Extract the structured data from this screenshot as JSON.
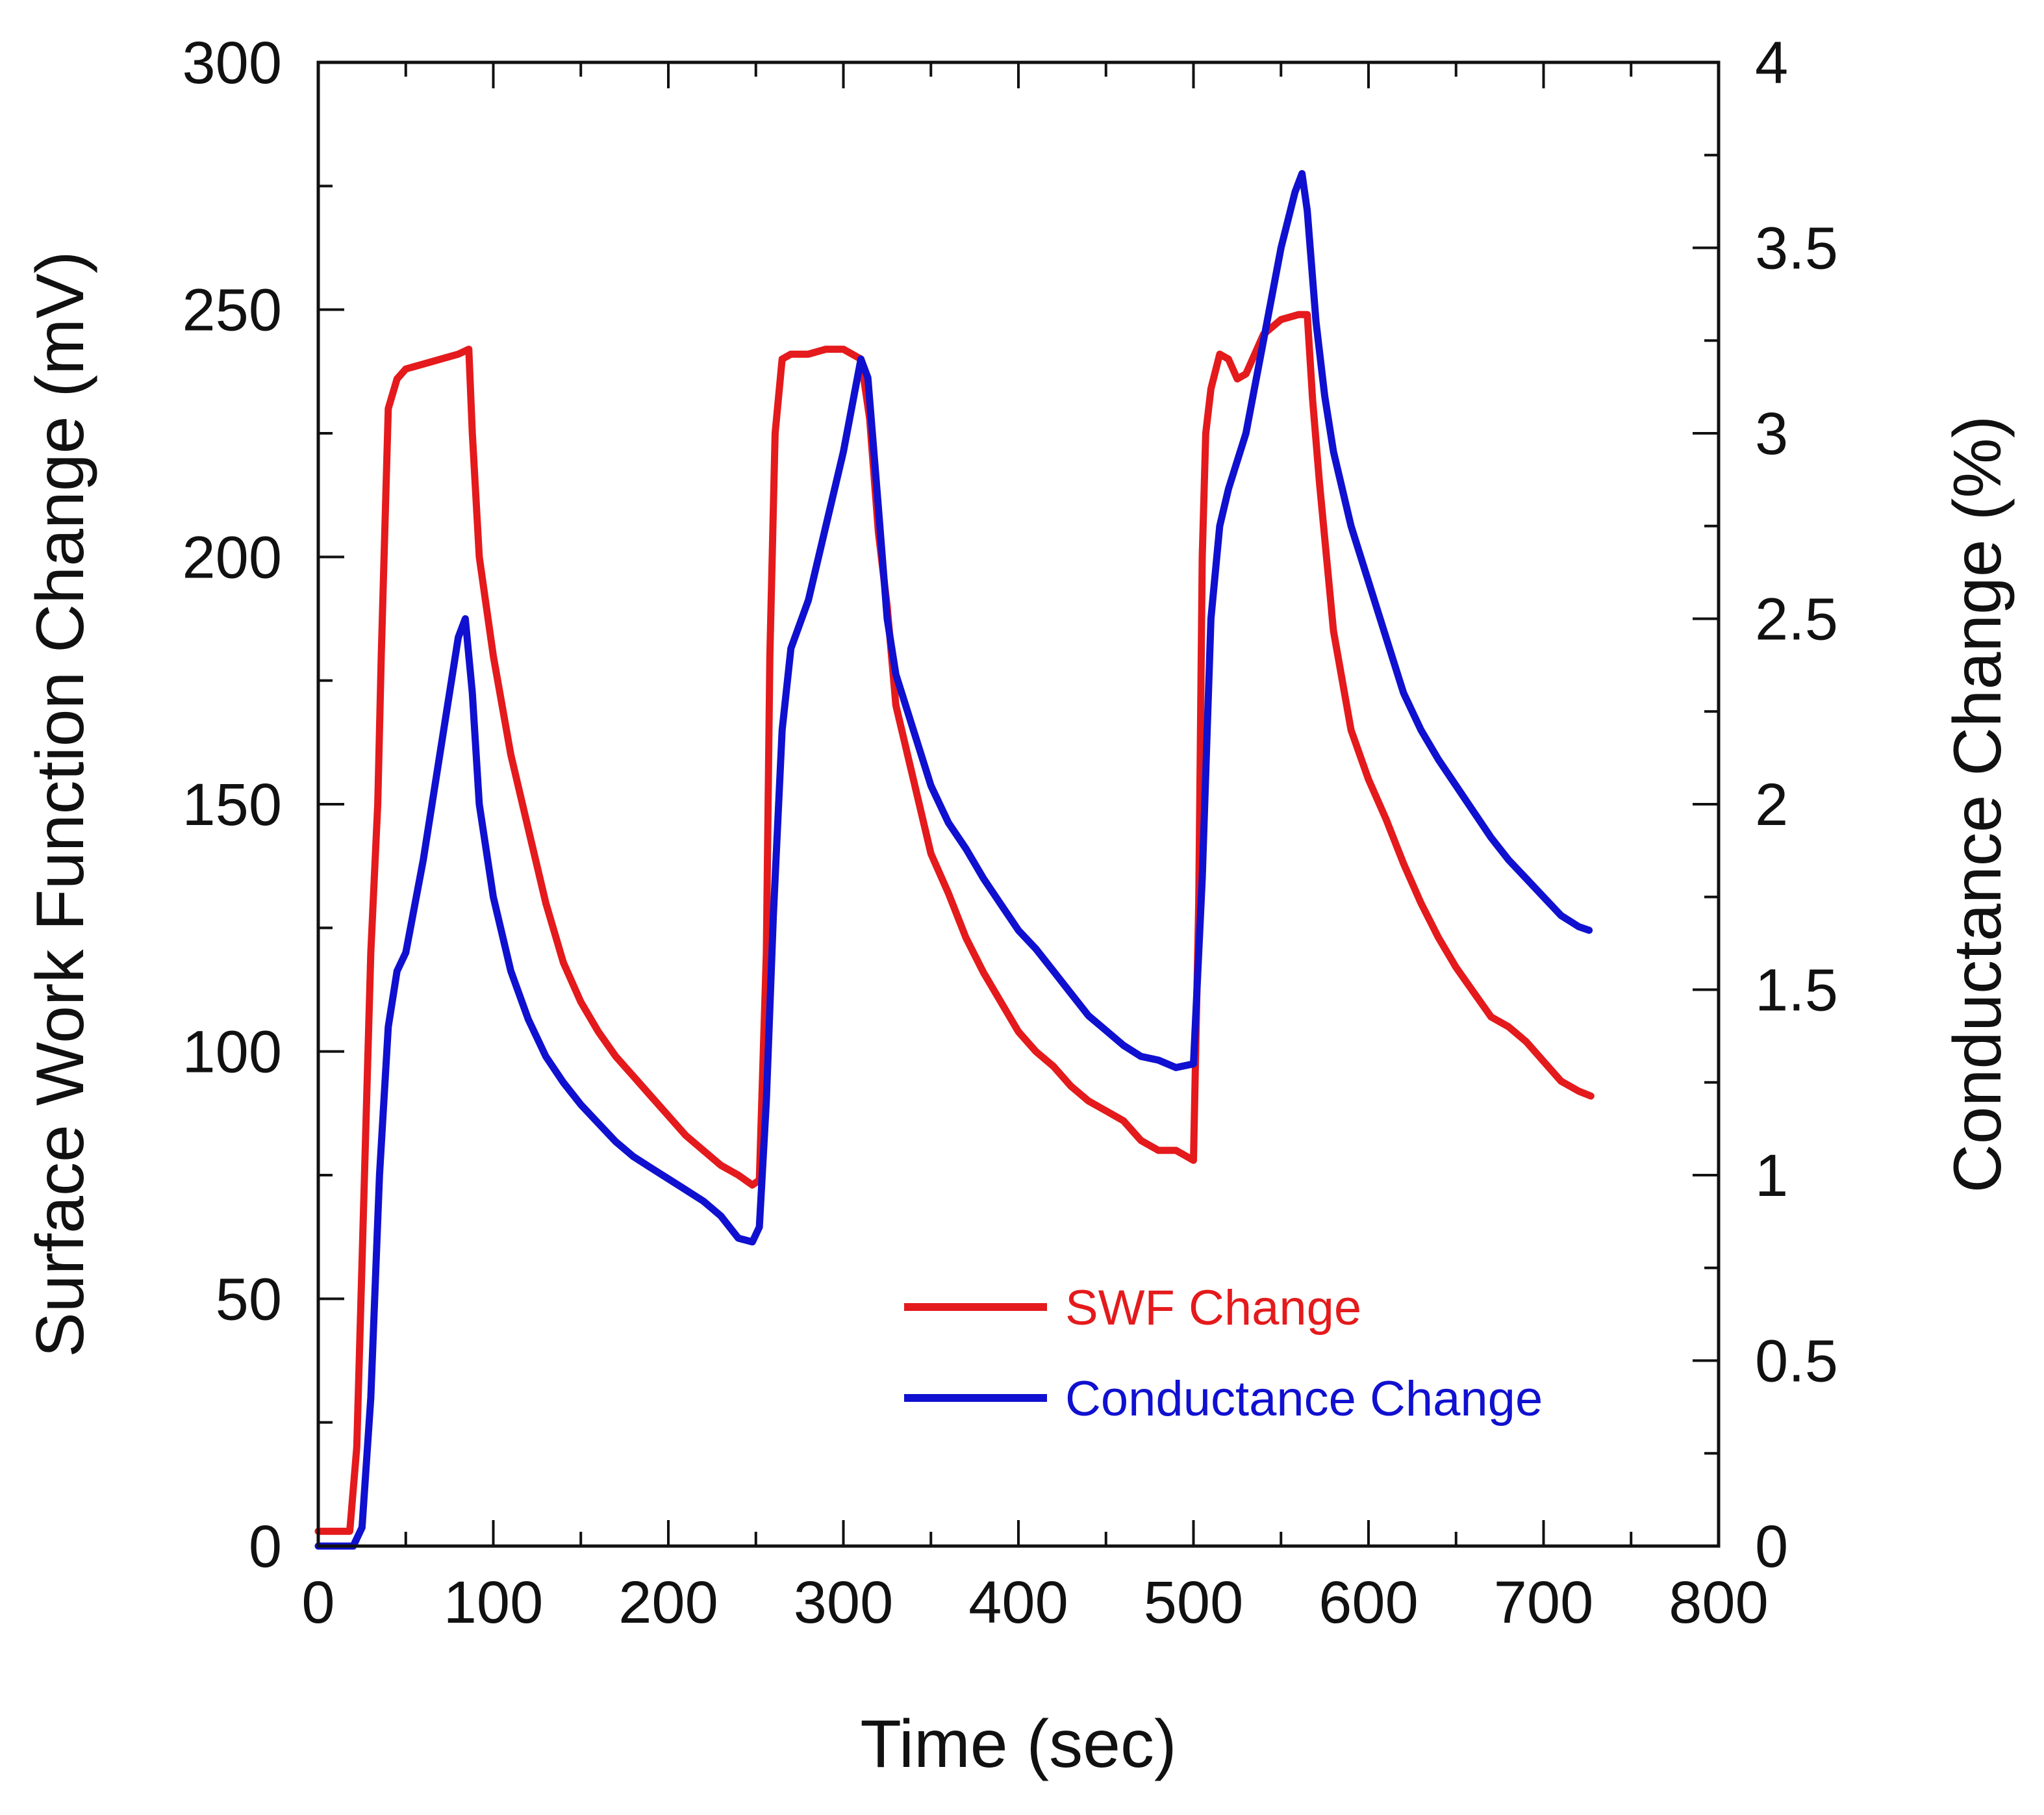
{
  "chart_data": {
    "type": "line",
    "title": "",
    "xlabel": "Time (sec)",
    "ylabel_left": "Surface Work Function Change (mV)",
    "ylabel_right": "Conductance Change (%)",
    "xlim": [
      0,
      800
    ],
    "ylim_left": [
      0,
      300
    ],
    "ylim_right": [
      0,
      4
    ],
    "x_ticks": [
      "0",
      "100",
      "200",
      "300",
      "400",
      "500",
      "600",
      "700",
      "800"
    ],
    "y_left_ticks": [
      "0",
      "50",
      "100",
      "150",
      "200",
      "250",
      "300"
    ],
    "y_right_ticks": [
      "0",
      "0.5",
      "1",
      "1.5",
      "2",
      "2.5",
      "3",
      "3.5",
      "4"
    ],
    "grid": false,
    "legend_position": "lower-right",
    "series": [
      {
        "name": "SWF Change",
        "axis": "left",
        "color": "#e41a1c",
        "points": [
          [
            0,
            3
          ],
          [
            10,
            3
          ],
          [
            18,
            3
          ],
          [
            22,
            20
          ],
          [
            26,
            70
          ],
          [
            30,
            120
          ],
          [
            34,
            150
          ],
          [
            36,
            180
          ],
          [
            40,
            230
          ],
          [
            45,
            236
          ],
          [
            50,
            238
          ],
          [
            60,
            239
          ],
          [
            70,
            240
          ],
          [
            80,
            241
          ],
          [
            86,
            242
          ],
          [
            88,
            225
          ],
          [
            92,
            200
          ],
          [
            100,
            180
          ],
          [
            110,
            160
          ],
          [
            120,
            145
          ],
          [
            130,
            130
          ],
          [
            140,
            118
          ],
          [
            150,
            110
          ],
          [
            160,
            104
          ],
          [
            170,
            99
          ],
          [
            180,
            95
          ],
          [
            190,
            91
          ],
          [
            200,
            87
          ],
          [
            210,
            83
          ],
          [
            220,
            80
          ],
          [
            230,
            77
          ],
          [
            240,
            75
          ],
          [
            248,
            73
          ],
          [
            252,
            74
          ],
          [
            256,
            120
          ],
          [
            258,
            180
          ],
          [
            261,
            225
          ],
          [
            265,
            240
          ],
          [
            270,
            241
          ],
          [
            280,
            241
          ],
          [
            290,
            242
          ],
          [
            300,
            242
          ],
          [
            310,
            240
          ],
          [
            315,
            228
          ],
          [
            320,
            205
          ],
          [
            325,
            190
          ],
          [
            330,
            170
          ],
          [
            340,
            155
          ],
          [
            350,
            140
          ],
          [
            360,
            132
          ],
          [
            370,
            123
          ],
          [
            380,
            116
          ],
          [
            390,
            110
          ],
          [
            400,
            104
          ],
          [
            410,
            100
          ],
          [
            420,
            97
          ],
          [
            430,
            93
          ],
          [
            440,
            90
          ],
          [
            450,
            88
          ],
          [
            460,
            86
          ],
          [
            470,
            82
          ],
          [
            480,
            80
          ],
          [
            490,
            80
          ],
          [
            495,
            79
          ],
          [
            500,
            78
          ],
          [
            503,
            130
          ],
          [
            505,
            200
          ],
          [
            507,
            225
          ],
          [
            510,
            234
          ],
          [
            515,
            241
          ],
          [
            520,
            240
          ],
          [
            525,
            236
          ],
          [
            530,
            237
          ],
          [
            540,
            245
          ],
          [
            550,
            248
          ],
          [
            560,
            249
          ],
          [
            565,
            249
          ],
          [
            568,
            232
          ],
          [
            572,
            215
          ],
          [
            580,
            185
          ],
          [
            590,
            165
          ],
          [
            600,
            155
          ],
          [
            610,
            147
          ],
          [
            620,
            138
          ],
          [
            630,
            130
          ],
          [
            640,
            123
          ],
          [
            650,
            117
          ],
          [
            660,
            112
          ],
          [
            670,
            107
          ],
          [
            680,
            105
          ],
          [
            690,
            102
          ],
          [
            700,
            98
          ],
          [
            710,
            94
          ],
          [
            720,
            92
          ],
          [
            727,
            91
          ]
        ]
      },
      {
        "name": "Conductance Change",
        "axis": "right",
        "color": "#1010d0",
        "points": [
          [
            0,
            0
          ],
          [
            10,
            0
          ],
          [
            20,
            0
          ],
          [
            25,
            0.05
          ],
          [
            30,
            0.4
          ],
          [
            35,
            1.0
          ],
          [
            40,
            1.4
          ],
          [
            45,
            1.55
          ],
          [
            50,
            1.6
          ],
          [
            60,
            1.85
          ],
          [
            70,
            2.15
          ],
          [
            80,
            2.45
          ],
          [
            84,
            2.5
          ],
          [
            88,
            2.3
          ],
          [
            92,
            2.0
          ],
          [
            100,
            1.75
          ],
          [
            110,
            1.55
          ],
          [
            120,
            1.42
          ],
          [
            130,
            1.32
          ],
          [
            140,
            1.25
          ],
          [
            150,
            1.19
          ],
          [
            160,
            1.14
          ],
          [
            170,
            1.09
          ],
          [
            180,
            1.05
          ],
          [
            190,
            1.02
          ],
          [
            200,
            0.99
          ],
          [
            210,
            0.96
          ],
          [
            220,
            0.93
          ],
          [
            230,
            0.89
          ],
          [
            240,
            0.83
          ],
          [
            248,
            0.82
          ],
          [
            252,
            0.86
          ],
          [
            256,
            1.2
          ],
          [
            260,
            1.7
          ],
          [
            265,
            2.2
          ],
          [
            270,
            2.42
          ],
          [
            280,
            2.55
          ],
          [
            290,
            2.75
          ],
          [
            300,
            2.95
          ],
          [
            306,
            3.1
          ],
          [
            310,
            3.2
          ],
          [
            314,
            3.15
          ],
          [
            320,
            2.8
          ],
          [
            325,
            2.5
          ],
          [
            330,
            2.35
          ],
          [
            340,
            2.2
          ],
          [
            350,
            2.05
          ],
          [
            360,
            1.95
          ],
          [
            370,
            1.88
          ],
          [
            380,
            1.8
          ],
          [
            390,
            1.73
          ],
          [
            400,
            1.66
          ],
          [
            410,
            1.61
          ],
          [
            420,
            1.55
          ],
          [
            430,
            1.49
          ],
          [
            440,
            1.43
          ],
          [
            450,
            1.39
          ],
          [
            460,
            1.35
          ],
          [
            470,
            1.32
          ],
          [
            480,
            1.31
          ],
          [
            490,
            1.29
          ],
          [
            500,
            1.3
          ],
          [
            505,
            1.8
          ],
          [
            510,
            2.5
          ],
          [
            515,
            2.75
          ],
          [
            520,
            2.85
          ],
          [
            530,
            3.0
          ],
          [
            540,
            3.25
          ],
          [
            550,
            3.5
          ],
          [
            558,
            3.65
          ],
          [
            562,
            3.7
          ],
          [
            565,
            3.6
          ],
          [
            570,
            3.3
          ],
          [
            575,
            3.1
          ],
          [
            580,
            2.95
          ],
          [
            590,
            2.75
          ],
          [
            600,
            2.6
          ],
          [
            610,
            2.45
          ],
          [
            620,
            2.3
          ],
          [
            630,
            2.2
          ],
          [
            640,
            2.12
          ],
          [
            650,
            2.05
          ],
          [
            660,
            1.98
          ],
          [
            670,
            1.91
          ],
          [
            680,
            1.85
          ],
          [
            690,
            1.8
          ],
          [
            700,
            1.75
          ],
          [
            710,
            1.7
          ],
          [
            720,
            1.67
          ],
          [
            726,
            1.66
          ]
        ]
      }
    ]
  }
}
